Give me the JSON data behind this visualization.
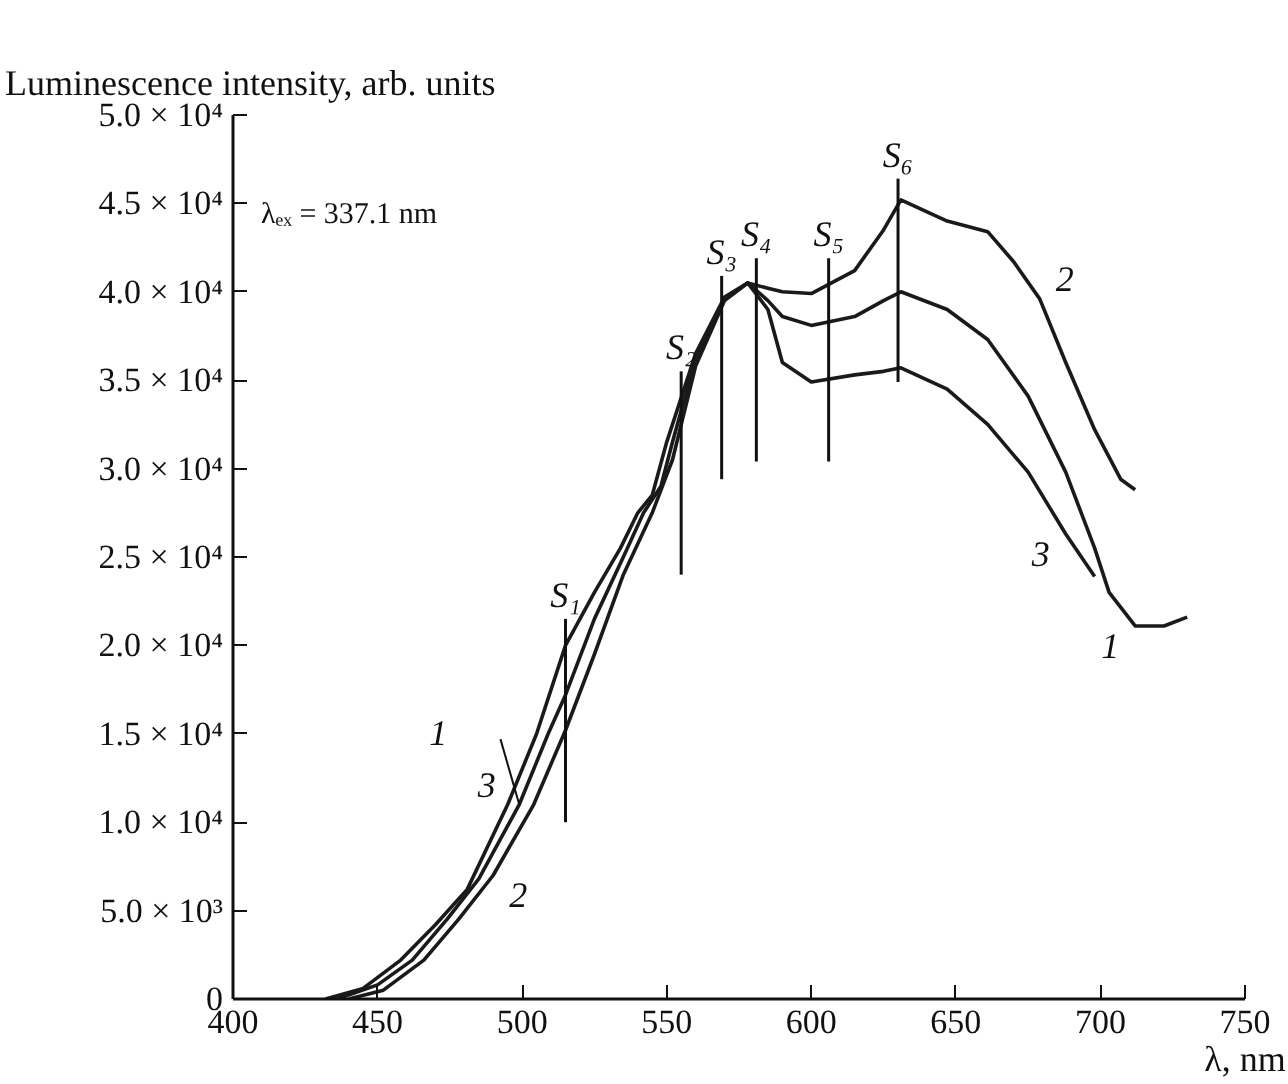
{
  "chart_data": {
    "type": "line",
    "ylabel": "Luminescence intensity, arb. units",
    "xlabel": "λ, nm",
    "xlim": [
      400,
      750
    ],
    "xticks": [
      400,
      450,
      500,
      550,
      600,
      650,
      700,
      750
    ],
    "ylim": [
      0,
      50000
    ],
    "yticks": [
      {
        "value": 0,
        "label": "0"
      },
      {
        "value": 5000,
        "label": "5.0 × 10³"
      },
      {
        "value": 10000,
        "label": "1.0 × 10⁴"
      },
      {
        "value": 15000,
        "label": "1.5 × 10⁴"
      },
      {
        "value": 20000,
        "label": "2.0 × 10⁴"
      },
      {
        "value": 25000,
        "label": "2.5 × 10⁴"
      },
      {
        "value": 30000,
        "label": "3.0 × 10⁴"
      },
      {
        "value": 35000,
        "label": "3.5 × 10⁴"
      },
      {
        "value": 40000,
        "label": "4.0 × 10⁴"
      },
      {
        "value": 45000,
        "label": "4.5 × 10⁴"
      },
      {
        "value": 50000,
        "label": "5.0 × 10⁴"
      }
    ],
    "grid": false,
    "marker": "none",
    "line_style": "solid",
    "series": [
      {
        "color": "#1a1a1a",
        "x": [
          436,
          450,
          462,
          474,
          485,
          499,
          509,
          515,
          525,
          535,
          542,
          548,
          552,
          560,
          570,
          578,
          585,
          590,
          600,
          615,
          625,
          631,
          647,
          661,
          675,
          688,
          698,
          703,
          712,
          722,
          730
        ],
        "values": [
          0,
          800,
          2200,
          4500,
          6800,
          11000,
          15000,
          17200,
          21500,
          25000,
          27500,
          29000,
          31500,
          36200,
          39600,
          40500,
          39500,
          38600,
          38100,
          38600,
          39500,
          40000,
          39000,
          37300,
          34100,
          29800,
          25500,
          23000,
          21100,
          21100,
          21600
        ]
      },
      {
        "color": "#1a1a1a",
        "x": [
          440,
          452,
          466,
          478,
          490,
          504,
          515,
          525,
          535,
          545,
          552,
          560,
          570,
          578,
          585,
          590,
          600,
          615,
          625,
          631,
          647,
          661,
          670,
          679,
          688,
          698,
          707,
          712
        ],
        "values": [
          0,
          500,
          2200,
          4500,
          7000,
          11000,
          15200,
          19500,
          24000,
          27500,
          30500,
          35800,
          39500,
          40500,
          40200,
          40000,
          39900,
          41200,
          43500,
          45200,
          44000,
          43400,
          41700,
          39600,
          36000,
          32200,
          29400,
          28800
        ]
      },
      {
        "color": "#1a1a1a",
        "x": [
          432,
          445,
          458,
          470,
          481,
          495,
          505,
          515,
          525,
          534,
          540,
          545,
          550,
          560,
          570,
          578,
          585,
          590,
          600,
          615,
          625,
          631,
          647,
          661,
          675,
          688,
          698
        ],
        "values": [
          0,
          600,
          2200,
          4200,
          6200,
          11000,
          15000,
          20000,
          23000,
          25500,
          27500,
          28500,
          31500,
          36500,
          39700,
          40500,
          39000,
          36000,
          34900,
          35300,
          35500,
          35700,
          34500,
          32500,
          29800,
          26300,
          23900
        ]
      }
    ],
    "annotations": [
      "λₑₓ = 337.1 nm",
      {
        "text": "S₁",
        "x": 515,
        "y": 20000
      },
      {
        "text": "S₂",
        "x": 555,
        "y": 34000
      },
      {
        "text": "S₃",
        "x": 569,
        "y": 39400
      },
      {
        "text": "S₄",
        "x": 581,
        "y": 40400
      },
      {
        "text": "S₅",
        "x": 606,
        "y": 40400
      },
      {
        "text": "S₆",
        "x": 630,
        "y": 44900
      },
      {
        "text": "1",
        "x": 499,
        "y": 11000
      },
      {
        "text": "3",
        "x": 495,
        "y": 11000
      },
      {
        "text": "2",
        "x": 490,
        "y": 7000
      },
      {
        "text": "2",
        "x": 679,
        "y": 39600
      },
      {
        "text": "3",
        "x": 688,
        "y": 26300
      },
      {
        "text": "1",
        "x": 712,
        "y": 21100
      }
    ]
  }
}
